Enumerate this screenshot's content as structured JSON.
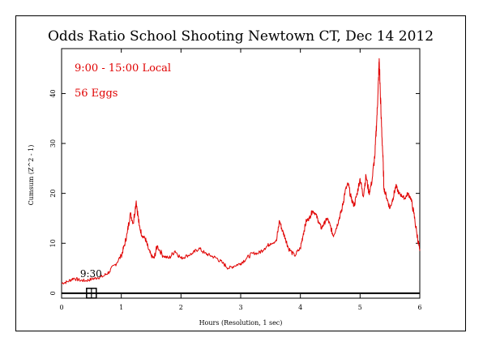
{
  "chart_data": {
    "type": "line",
    "title": "Odds Ratio School Shooting Newtown CT, Dec 14 2012",
    "xlabel": "Hours (Resolution, 1 sec)",
    "ylabel": "Cumsum (Z^2 - 1)",
    "xlim": [
      0,
      6
    ],
    "ylim": [
      -1,
      49
    ],
    "xticks": [
      0,
      1,
      2,
      3,
      4,
      5,
      6
    ],
    "yticks": [
      0,
      10,
      20,
      30,
      40
    ],
    "grid": false,
    "annotations": [
      "9:00 - 15:00 Local",
      "56 Eggs"
    ],
    "event_marker": {
      "label": "9:30",
      "x": 0.5,
      "y": 0
    },
    "baseline": 0,
    "series": [
      {
        "color": "#e00000",
        "x": [
          0,
          0.1,
          0.2,
          0.3,
          0.4,
          0.5,
          0.6,
          0.7,
          0.8,
          0.9,
          1.0,
          1.05,
          1.1,
          1.15,
          1.2,
          1.25,
          1.3,
          1.35,
          1.4,
          1.45,
          1.5,
          1.55,
          1.6,
          1.7,
          1.8,
          1.9,
          2.0,
          2.1,
          2.2,
          2.3,
          2.4,
          2.5,
          2.6,
          2.7,
          2.8,
          2.9,
          3.0,
          3.1,
          3.2,
          3.3,
          3.4,
          3.5,
          3.6,
          3.65,
          3.7,
          3.75,
          3.8,
          3.9,
          4.0,
          4.05,
          4.1,
          4.15,
          4.2,
          4.25,
          4.3,
          4.35,
          4.4,
          4.45,
          4.5,
          4.55,
          4.6,
          4.65,
          4.7,
          4.75,
          4.8,
          4.85,
          4.9,
          4.95,
          5.0,
          5.05,
          5.1,
          5.15,
          5.2,
          5.25,
          5.28,
          5.3,
          5.32,
          5.35,
          5.38,
          5.4,
          5.45,
          5.5,
          5.55,
          5.6,
          5.65,
          5.7,
          5.75,
          5.8,
          5.85,
          5.9,
          5.95,
          6.0
        ],
        "values": [
          2.0,
          2.3,
          3.0,
          2.6,
          2.5,
          2.8,
          3.1,
          3.4,
          4.3,
          5.8,
          7.5,
          9.5,
          12.0,
          16.0,
          14.0,
          18.5,
          13.5,
          11.5,
          11.0,
          9.0,
          7.5,
          7.0,
          9.5,
          7.5,
          7.0,
          8.5,
          7.0,
          7.5,
          8.0,
          9.0,
          8.0,
          7.5,
          7.0,
          6.0,
          5.0,
          5.5,
          6.0,
          7.0,
          8.0,
          8.0,
          9.0,
          10.0,
          10.5,
          14.5,
          12.5,
          11.0,
          9.0,
          7.5,
          9.0,
          12.0,
          14.5,
          15.0,
          16.5,
          16.0,
          14.5,
          13.0,
          14.0,
          15.0,
          13.5,
          11.5,
          13.0,
          15.0,
          17.0,
          20.5,
          22.0,
          19.0,
          17.5,
          20.0,
          23.0,
          19.5,
          23.5,
          20.0,
          22.5,
          28.0,
          35.0,
          40.0,
          47.0,
          36.0,
          28.0,
          21.0,
          19.0,
          17.0,
          19.0,
          21.5,
          20.0,
          19.5,
          19.0,
          20.0,
          19.0,
          16.0,
          12.0,
          8.5
        ]
      }
    ]
  }
}
